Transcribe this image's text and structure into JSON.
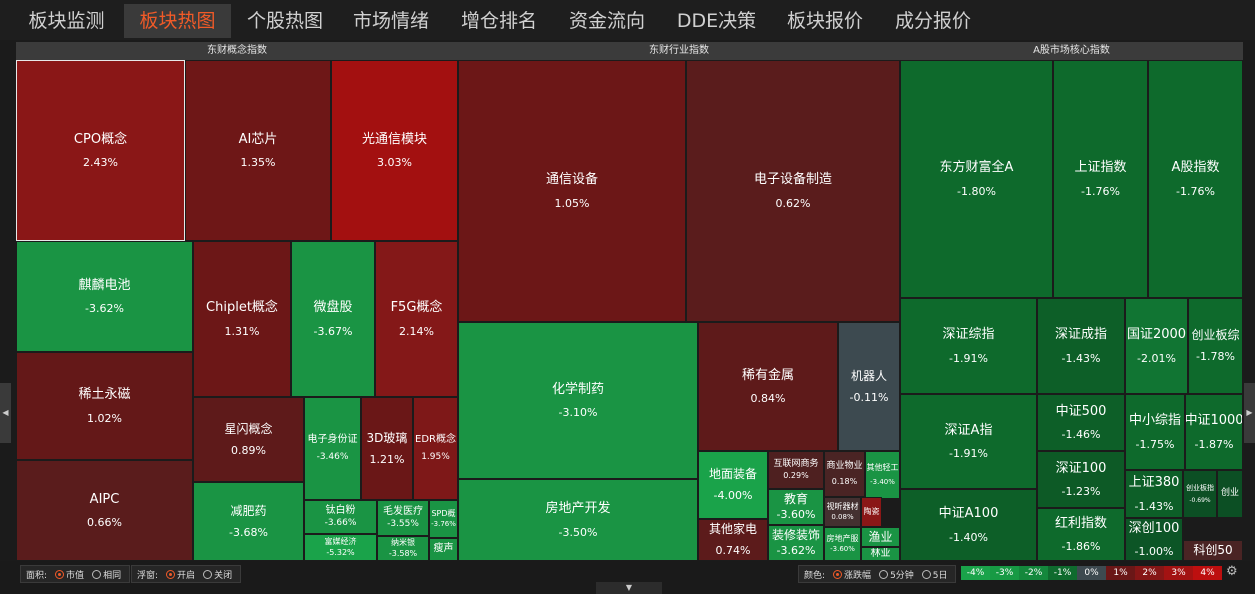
{
  "tabs": [
    {
      "label": "板块监测",
      "active": false
    },
    {
      "label": "板块热图",
      "active": true
    },
    {
      "label": "个股热图",
      "active": false
    },
    {
      "label": "市场情绪",
      "active": false
    },
    {
      "label": "增仓排名",
      "active": false
    },
    {
      "label": "资金流向",
      "active": false
    },
    {
      "label": "DDE决策",
      "active": false
    },
    {
      "label": "板块报价",
      "active": false
    },
    {
      "label": "成分报价",
      "active": false
    }
  ],
  "panels": [
    {
      "title": "东财概念指数"
    },
    {
      "title": "东财行业指数"
    },
    {
      "title": "A股市场核心指数"
    }
  ],
  "tiles": [
    {
      "name": "CPO概念",
      "pct": "2.43%",
      "color": "#8a1717",
      "selected": true
    },
    {
      "name": "AI芯片",
      "pct": "1.35%",
      "color": "#6e1717"
    },
    {
      "name": "光通信模块",
      "pct": "3.03%",
      "color": "#a31010"
    },
    {
      "name": "麒麟电池",
      "pct": "-3.62%",
      "color": "#1a9444"
    },
    {
      "name": "Chiplet概念",
      "pct": "1.31%",
      "color": "#6c1717"
    },
    {
      "name": "微盘股",
      "pct": "-3.67%",
      "color": "#1a9444"
    },
    {
      "name": "F5G概念",
      "pct": "2.14%",
      "color": "#841818"
    },
    {
      "name": "稀土永磁",
      "pct": "1.02%",
      "color": "#641818"
    },
    {
      "name": "星闪概念",
      "pct": "0.89%",
      "color": "#5e1a1a"
    },
    {
      "name": "电子身份证",
      "pct": "-3.46%",
      "color": "#1a9444"
    },
    {
      "name": "3D玻璃",
      "pct": "1.21%",
      "color": "#6a1717"
    },
    {
      "name": "EDR概念",
      "pct": "1.95%",
      "color": "#7e1818"
    },
    {
      "name": "AIPC",
      "pct": "0.66%",
      "color": "#5a1c1c"
    },
    {
      "name": "减肥药",
      "pct": "-3.68%",
      "color": "#1a9444"
    },
    {
      "name": "钛白粉",
      "pct": "-3.66%",
      "color": "#1a9444"
    },
    {
      "name": "毛发医疗",
      "pct": "-3.55%",
      "color": "#1a9444"
    },
    {
      "name": "SPD概",
      "pct": "-3.76%",
      "color": "#1a9444"
    },
    {
      "name": "富媒经济",
      "pct": "-5.32%",
      "color": "#1aa34a"
    },
    {
      "name": "纳米银",
      "pct": "-3.58%",
      "color": "#1a9444"
    },
    {
      "name": "瘦声",
      "pct": "",
      "color": "#1a9444"
    },
    {
      "name": "通信设备",
      "pct": "1.05%",
      "color": "#6c1717"
    },
    {
      "name": "电子设备制造",
      "pct": "0.62%",
      "color": "#5a1c1c"
    },
    {
      "name": "化学制药",
      "pct": "-3.10%",
      "color": "#1a9444"
    },
    {
      "name": "稀有金属",
      "pct": "0.84%",
      "color": "#5e1a1a"
    },
    {
      "name": "机器人",
      "pct": "-0.11%",
      "color": "#3d4a50"
    },
    {
      "name": "房地产开发",
      "pct": "-3.50%",
      "color": "#1a9444"
    },
    {
      "name": "地面装备",
      "pct": "-4.00%",
      "color": "#1aa34a"
    },
    {
      "name": "互联网商务",
      "pct": "0.29%",
      "color": "#4e2020"
    },
    {
      "name": "商业物业",
      "pct": "0.18%",
      "color": "#4a2424"
    },
    {
      "name": "其他轻工",
      "pct": "-3.40%",
      "color": "#1a9444"
    },
    {
      "name": "教育",
      "pct": "-3.60%",
      "color": "#1a9444"
    },
    {
      "name": "视听器材",
      "pct": "0.08%",
      "color": "#443030"
    },
    {
      "name": "陶瓷",
      "pct": "",
      "color": "#8a1717"
    },
    {
      "name": "其他家电",
      "pct": "0.74%",
      "color": "#5c1b1b"
    },
    {
      "name": "装修装饰",
      "pct": "-3.62%",
      "color": "#1a9444"
    },
    {
      "name": "房地产服",
      "pct": "-3.60%",
      "color": "#1a9444"
    },
    {
      "name": "渔业",
      "pct": "",
      "color": "#1a9444"
    },
    {
      "name": "林业",
      "pct": "",
      "color": "#1a9444"
    },
    {
      "name": "东方财富全A",
      "pct": "-1.80%",
      "color": "#0e6a2c"
    },
    {
      "name": "上证指数",
      "pct": "-1.76%",
      "color": "#0e6a2c"
    },
    {
      "name": "A股指数",
      "pct": "-1.76%",
      "color": "#0e6a2c"
    },
    {
      "name": "深证综指",
      "pct": "-1.91%",
      "color": "#0e6a2c"
    },
    {
      "name": "深证成指",
      "pct": "-1.43%",
      "color": "#0d5f28"
    },
    {
      "name": "国证2000",
      "pct": "-2.01%",
      "color": "#117533"
    },
    {
      "name": "创业板综",
      "pct": "-1.78%",
      "color": "#0e6a2c"
    },
    {
      "name": "深证A指",
      "pct": "-1.91%",
      "color": "#0e6a2c"
    },
    {
      "name": "中证500",
      "pct": "-1.46%",
      "color": "#0d5f28"
    },
    {
      "name": "中小综指",
      "pct": "-1.75%",
      "color": "#0e6a2c"
    },
    {
      "name": "中证1000",
      "pct": "-1.87%",
      "color": "#0e6a2c"
    },
    {
      "name": "中证A100",
      "pct": "-1.40%",
      "color": "#0d5f28"
    },
    {
      "name": "深证100",
      "pct": "-1.23%",
      "color": "#0d5a26"
    },
    {
      "name": "上证380",
      "pct": "-1.43%",
      "color": "#0d5f28"
    },
    {
      "name": "创业板指",
      "pct": "-0.69%",
      "color": "#0c4f24"
    },
    {
      "name": "创业",
      "pct": "",
      "color": "#0c4f24"
    },
    {
      "name": "红利指数",
      "pct": "-1.86%",
      "color": "#0e6a2c"
    },
    {
      "name": "深创100",
      "pct": "-1.00%",
      "color": "#0c5526"
    },
    {
      "name": "科创50",
      "pct": "",
      "color": "#4a2424"
    }
  ],
  "footer": {
    "area_label": "面积:",
    "area_options": [
      {
        "label": "市值",
        "on": true
      },
      {
        "label": "相同",
        "on": false
      }
    ],
    "float_label": "浮窗:",
    "float_options": [
      {
        "label": "开启",
        "on": true
      },
      {
        "label": "关闭",
        "on": false
      }
    ],
    "color_label": "颜色:",
    "color_options": [
      {
        "label": "涨跌幅",
        "on": true
      },
      {
        "label": "5分钟",
        "on": false
      },
      {
        "label": "5日",
        "on": false
      }
    ],
    "legend": [
      {
        "label": "-4%",
        "color": "#1aa34a"
      },
      {
        "label": "-3%",
        "color": "#179a44"
      },
      {
        "label": "-2%",
        "color": "#14883c"
      },
      {
        "label": "-1%",
        "color": "#0f6b2e"
      },
      {
        "label": "0%",
        "color": "#3d4a50"
      },
      {
        "label": "1%",
        "color": "#6a1717"
      },
      {
        "label": "2%",
        "color": "#861616"
      },
      {
        "label": "3%",
        "color": "#a31212"
      },
      {
        "label": "4%",
        "color": "#bd0f0f"
      }
    ]
  },
  "icons": {
    "left_arrow": "◀",
    "right_arrow": "▶",
    "collapse": "▼",
    "gear": "⚙"
  }
}
